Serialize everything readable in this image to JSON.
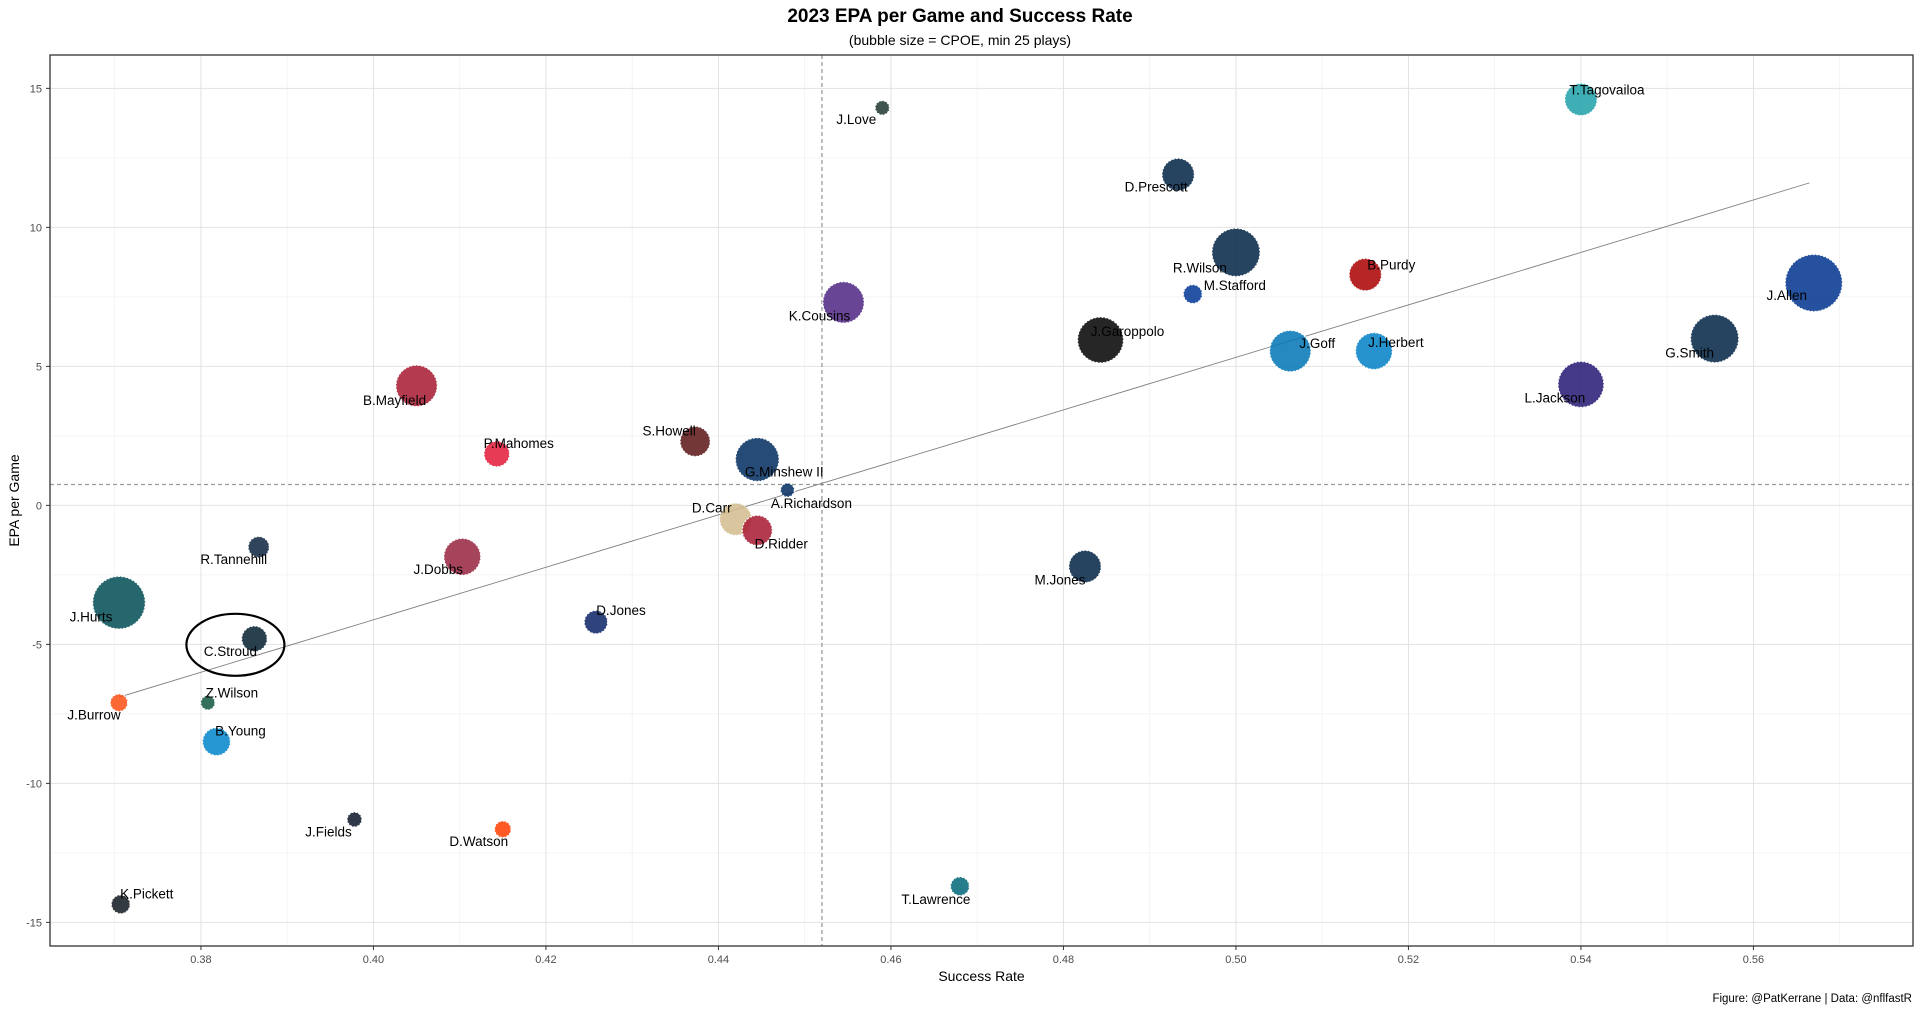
{
  "chart_data": {
    "type": "scatter",
    "title": "2023 EPA per Game and Success Rate",
    "subtitle": "(bubble size = CPOE, min 25 plays)",
    "xlabel": "Success Rate",
    "ylabel": "EPA per Game",
    "xlim": [
      0.3625,
      0.5785
    ],
    "ylim": [
      -15.85,
      16.2
    ],
    "xticks": [
      0.38,
      0.4,
      0.42,
      0.44,
      0.46,
      0.48,
      0.5,
      0.52,
      0.54,
      0.56
    ],
    "xtick_labels": [
      "0.38",
      "0.40",
      "0.42",
      "0.44",
      "0.46",
      "0.48",
      "0.50",
      "0.52",
      "0.54",
      "0.56"
    ],
    "yticks": [
      -15,
      -10,
      -5,
      0,
      5,
      10,
      15
    ],
    "ytick_labels": [
      "-15",
      "-10",
      "-5",
      "0",
      "5",
      "10",
      "15"
    ],
    "grid": true,
    "reference_lines": {
      "x": 0.452,
      "y": 0.75
    },
    "trend_line": {
      "x": [
        0.3705,
        0.5665
      ],
      "y": [
        -6.9,
        11.6
      ]
    },
    "highlight": "C.Stroud",
    "points": [
      {
        "name": "T.Tagovailoa",
        "x": 0.54,
        "y": 14.6,
        "size": 4.5,
        "color": "#1FA1A8"
      },
      {
        "name": "J.Love",
        "x": 0.459,
        "y": 14.3,
        "size": 0.5,
        "color": "#203731"
      },
      {
        "name": "D.Prescott",
        "x": 0.4933,
        "y": 11.9,
        "size": 4.5,
        "color": "#002244"
      },
      {
        "name": "R.Wilson",
        "x": 0.5,
        "y": 9.1,
        "size": 8.0,
        "color": "#002244"
      },
      {
        "name": "B.Purdy",
        "x": 0.515,
        "y": 8.3,
        "size": 4.5,
        "color": "#AA0000"
      },
      {
        "name": "M.Stafford",
        "x": 0.495,
        "y": 7.6,
        "size": 1.5,
        "color": "#003594"
      },
      {
        "name": "J.Allen",
        "x": 0.567,
        "y": 8.0,
        "size": 10.0,
        "color": "#00338D"
      },
      {
        "name": "K.Cousins",
        "x": 0.4545,
        "y": 7.3,
        "size": 6.5,
        "color": "#4F2683"
      },
      {
        "name": "J.Garoppolo",
        "x": 0.4843,
        "y": 5.95,
        "size": 7.5,
        "color": "#000000"
      },
      {
        "name": "J.Goff",
        "x": 0.5063,
        "y": 5.55,
        "size": 6.5,
        "color": "#0076B6"
      },
      {
        "name": "J.Herbert",
        "x": 0.516,
        "y": 5.55,
        "size": 5.5,
        "color": "#0080C6"
      },
      {
        "name": "G.Smith",
        "x": 0.5555,
        "y": 6.0,
        "size": 8.0,
        "color": "#002244"
      },
      {
        "name": "L.Jackson",
        "x": 0.54,
        "y": 4.35,
        "size": 7.5,
        "color": "#241773"
      },
      {
        "name": "B.Mayfield",
        "x": 0.405,
        "y": 4.3,
        "size": 6.5,
        "color": "#A71930"
      },
      {
        "name": "P.Mahomes",
        "x": 0.4143,
        "y": 1.85,
        "size": 3.0,
        "color": "#E31837"
      },
      {
        "name": "S.Howell",
        "x": 0.4373,
        "y": 2.3,
        "size": 4.0,
        "color": "#5A1414"
      },
      {
        "name": "G.Minshew II",
        "x": 0.4445,
        "y": 1.65,
        "size": 7.0,
        "color": "#002C5F"
      },
      {
        "name": "A.Richardson",
        "x": 0.448,
        "y": 0.55,
        "size": 0.4,
        "color": "#002C5F"
      },
      {
        "name": "D.Carr",
        "x": 0.442,
        "y": -0.5,
        "size": 4.5,
        "color": "#D3BC8D"
      },
      {
        "name": "D.Ridder",
        "x": 0.4445,
        "y": -0.9,
        "size": 4.0,
        "color": "#A71930"
      },
      {
        "name": "R.Tannehill",
        "x": 0.3867,
        "y": -1.5,
        "size": 2.0,
        "color": "#0C2340"
      },
      {
        "name": "J.Dobbs",
        "x": 0.4103,
        "y": -1.85,
        "size": 5.5,
        "color": "#97233F"
      },
      {
        "name": "M.Jones",
        "x": 0.4825,
        "y": -2.2,
        "size": 4.5,
        "color": "#002244"
      },
      {
        "name": "J.Hurts",
        "x": 0.3705,
        "y": -3.5,
        "size": 9.0,
        "color": "#004C54"
      },
      {
        "name": "D.Jones",
        "x": 0.4258,
        "y": -4.2,
        "size": 2.5,
        "color": "#0B2265"
      },
      {
        "name": "C.Stroud",
        "x": 0.3862,
        "y": -4.8,
        "size": 3.0,
        "color": "#03202F"
      },
      {
        "name": "J.Burrow",
        "x": 0.3705,
        "y": -7.1,
        "size": 1.2,
        "color": "#FB4F14"
      },
      {
        "name": "Z.Wilson",
        "x": 0.3808,
        "y": -7.1,
        "size": 0.5,
        "color": "#125740"
      },
      {
        "name": "B.Young",
        "x": 0.3818,
        "y": -8.5,
        "size": 3.5,
        "color": "#0085CA"
      },
      {
        "name": "J.Fields",
        "x": 0.3978,
        "y": -11.3,
        "size": 0.6,
        "color": "#0B162A"
      },
      {
        "name": "D.Watson",
        "x": 0.415,
        "y": -11.65,
        "size": 1.0,
        "color": "#FF3C00"
      },
      {
        "name": "T.Lawrence",
        "x": 0.468,
        "y": -13.7,
        "size": 1.5,
        "color": "#006778"
      },
      {
        "name": "K.Pickett",
        "x": 0.3707,
        "y": -14.35,
        "size": 1.5,
        "color": "#101820"
      }
    ]
  },
  "caption": "Figure: @PatKerrane | Data: @nflfastR"
}
